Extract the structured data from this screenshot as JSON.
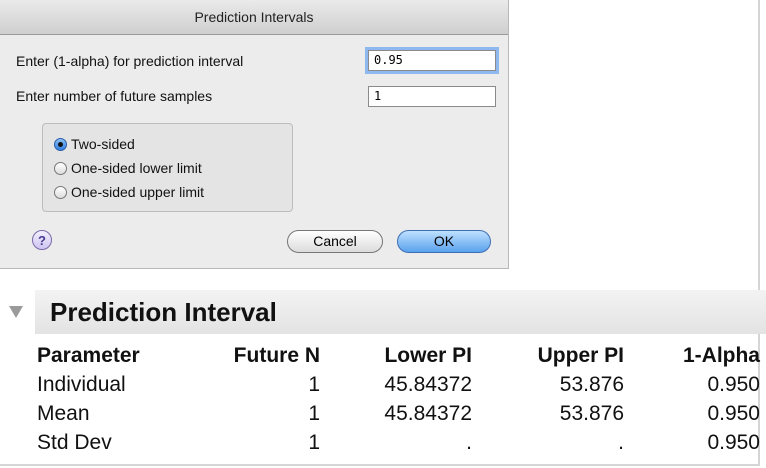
{
  "dialog": {
    "title": "Prediction Intervals",
    "fields": [
      {
        "label": "Enter (1-alpha) for prediction interval",
        "value": "0.95"
      },
      {
        "label": "Enter number of future samples",
        "value": "1"
      }
    ],
    "options": [
      {
        "label": "Two-sided",
        "selected": true
      },
      {
        "label": "One-sided lower limit",
        "selected": false
      },
      {
        "label": "One-sided upper limit",
        "selected": false
      }
    ],
    "help": "?",
    "buttons": [
      "Cancel",
      "OK"
    ]
  },
  "report": {
    "title": "Prediction Interval",
    "table": {
      "columns": [
        "Parameter",
        "Future N",
        "Lower PI",
        "Upper PI",
        "1-Alpha"
      ],
      "rows": [
        [
          "Individual",
          "1",
          "45.84372",
          "53.876",
          "0.950"
        ],
        [
          "Mean",
          "1",
          "45.84372",
          "53.876",
          "0.950"
        ],
        [
          "Std Dev",
          "1",
          ".",
          ".",
          "0.950"
        ]
      ]
    }
  }
}
